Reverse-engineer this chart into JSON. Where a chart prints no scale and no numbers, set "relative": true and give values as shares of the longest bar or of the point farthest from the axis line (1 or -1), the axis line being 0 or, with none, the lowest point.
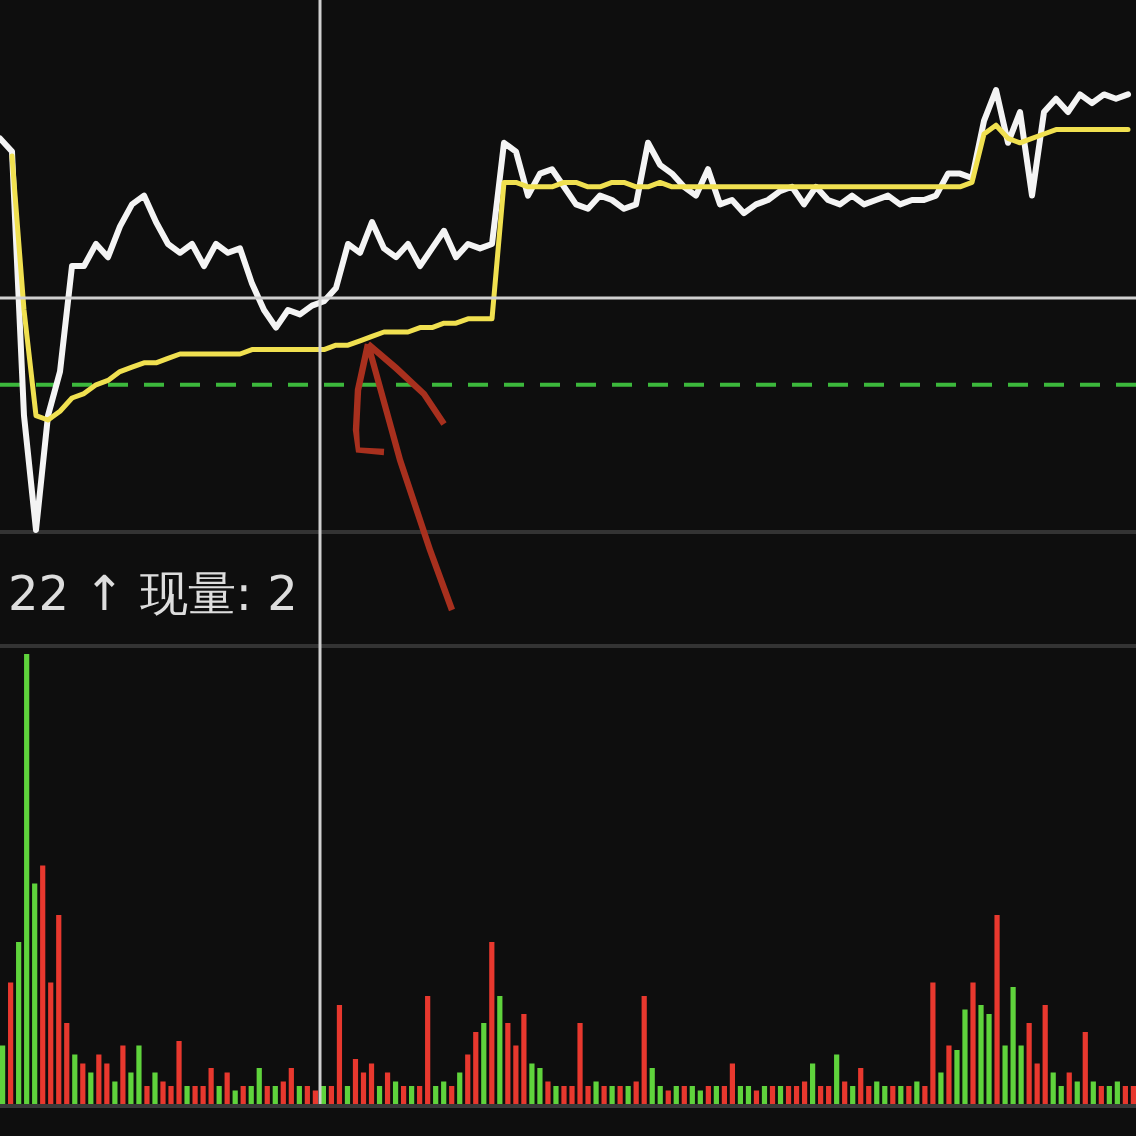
{
  "chart_data": [
    {
      "type": "line",
      "relative": true,
      "categories": [
        null,
        null,
        null,
        null,
        null,
        null,
        null,
        null,
        null,
        null,
        null,
        null,
        null,
        null,
        null,
        null,
        null,
        null,
        null,
        null,
        null,
        null,
        null,
        null,
        null,
        null,
        null,
        null,
        null,
        null,
        null,
        null,
        null,
        null,
        null,
        null,
        null,
        null,
        null,
        null,
        null,
        null,
        null,
        null,
        null,
        null,
        null,
        null,
        null,
        null,
        null,
        null,
        null,
        null,
        null,
        null,
        null,
        null,
        null,
        null,
        null,
        null,
        null,
        null,
        null,
        null,
        null,
        null,
        null,
        null,
        null,
        null,
        null,
        null,
        null,
        null,
        null,
        null,
        null,
        null,
        null,
        null,
        null,
        null,
        null,
        null,
        null,
        null,
        null,
        null,
        null,
        null,
        null,
        null,
        null
      ],
      "series": [
        {
          "color": "#f4f4f4",
          "values": [
            0.89,
            0.86,
            0.26,
            0,
            0.26,
            0.36,
            0.6,
            0.6,
            0.65,
            0.62,
            0.69,
            0.74,
            0.76,
            0.7,
            0.65,
            0.63,
            0.65,
            0.6,
            0.65,
            0.63,
            0.64,
            0.56,
            0.5,
            0.46,
            0.5,
            0.49,
            0.51,
            0.52,
            0.55,
            0.65,
            0.63,
            0.7,
            0.64,
            0.62,
            0.65,
            0.6,
            0.64,
            0.68,
            0.62,
            0.65,
            0.64,
            0.65,
            0.88,
            0.86,
            0.76,
            0.81,
            0.82,
            0.78,
            0.74,
            0.73,
            0.76,
            0.75,
            0.73,
            0.74,
            0.88,
            0.83,
            0.81,
            0.78,
            0.76,
            0.82,
            0.74,
            0.75,
            0.72,
            0.74,
            0.75,
            0.77,
            0.78,
            0.74,
            0.78,
            0.75,
            0.74,
            0.76,
            0.74,
            0.75,
            0.76,
            0.74,
            0.75,
            0.75,
            0.76,
            0.81,
            0.81,
            0.8,
            0.93,
            1,
            0.88,
            0.95,
            0.76,
            0.95,
            0.98,
            0.95,
            0.99,
            0.97,
            0.99,
            0.98,
            0.99
          ]
        },
        {
          "color": "#f0e050",
          "values": [
            null,
            0.85,
            0.5,
            0.26,
            0.25,
            0.27,
            0.3,
            0.31,
            0.33,
            0.34,
            0.36,
            0.37,
            0.38,
            0.38,
            0.39,
            0.4,
            0.4,
            0.4,
            0.4,
            0.4,
            0.4,
            0.41,
            0.41,
            0.41,
            0.41,
            0.41,
            0.41,
            0.41,
            0.42,
            0.42,
            0.43,
            0.44,
            0.45,
            0.45,
            0.45,
            0.46,
            0.46,
            0.47,
            0.47,
            0.48,
            0.48,
            0.48,
            0.79,
            0.79,
            0.78,
            0.78,
            0.78,
            0.79,
            0.79,
            0.78,
            0.78,
            0.79,
            0.79,
            0.78,
            0.78,
            0.79,
            0.78,
            0.78,
            0.78,
            0.78,
            0.78,
            0.78,
            0.78,
            0.78,
            0.78,
            0.78,
            0.78,
            0.78,
            0.78,
            0.78,
            0.78,
            0.78,
            0.78,
            0.78,
            0.78,
            0.78,
            0.78,
            0.78,
            0.78,
            0.78,
            0.78,
            0.79,
            0.9,
            0.92,
            0.89,
            0.88,
            0.89,
            0.9,
            0.91,
            0.91,
            0.91,
            0.91,
            0.91,
            0.91,
            0.91
          ]
        }
      ],
      "ref_lines": [
        {
          "axis": "y",
          "value": 0.33,
          "color": "#3cb83c",
          "line_style": "dashed"
        }
      ]
    },
    {
      "type": "bar",
      "relative": true,
      "annotations": [
        "22 ↑ 现量: 2"
      ],
      "categories": [
        null,
        null,
        null,
        null,
        null,
        null,
        null,
        null,
        null,
        null,
        null,
        null,
        null,
        null,
        null,
        null,
        null,
        null,
        null,
        null,
        null,
        null,
        null,
        null,
        null,
        null,
        null,
        null,
        null,
        null,
        null,
        null,
        null,
        null,
        null,
        null,
        null,
        null,
        null,
        null,
        null,
        null,
        null,
        null,
        null,
        null,
        null,
        null,
        null,
        null,
        null,
        null,
        null,
        null,
        null,
        null,
        null,
        null,
        null,
        null,
        null,
        null,
        null,
        null,
        null,
        null,
        null,
        null,
        null,
        null,
        null,
        null,
        null,
        null,
        null,
        null,
        null,
        null,
        null,
        null,
        null,
        null,
        null,
        null,
        null,
        null,
        null,
        null,
        null,
        null,
        null,
        null,
        null,
        null,
        null,
        null,
        null,
        null,
        null,
        null,
        null,
        null,
        null,
        null,
        null,
        null,
        null,
        null,
        null,
        null,
        null,
        null,
        null,
        null,
        null,
        null,
        null,
        null,
        null,
        null,
        null,
        null,
        null,
        null,
        null,
        null,
        null,
        null,
        null,
        null,
        null,
        null,
        null,
        null,
        null,
        null,
        null,
        null,
        null,
        null,
        null,
        null
      ],
      "values": [
        0.13,
        0.27,
        0.36,
        1,
        0.49,
        0.53,
        0.27,
        0.42,
        0.18,
        0.11,
        0.09,
        0.07,
        0.11,
        0.09,
        0.05,
        0.13,
        0.07,
        0.13,
        0.04,
        0.07,
        0.05,
        0.04,
        0.14,
        0.04,
        0.04,
        0.04,
        0.08,
        0.04,
        0.07,
        0.03,
        0.04,
        0.04,
        0.08,
        0.04,
        0.04,
        0.05,
        0.08,
        0.04,
        0.04,
        0.03,
        0.04,
        0.04,
        0.22,
        0.04,
        0.1,
        0.07,
        0.09,
        0.04,
        0.07,
        0.05,
        0.04,
        0.04,
        0.04,
        0.24,
        0.04,
        0.05,
        0.04,
        0.07,
        0.11,
        0.16,
        0.18,
        0.36,
        0.24,
        0.18,
        0.13,
        0.2,
        0.09,
        0.08,
        0.05,
        0.04,
        0.04,
        0.04,
        0.18,
        0.04,
        0.05,
        0.04,
        0.04,
        0.04,
        0.04,
        0.05,
        0.24,
        0.08,
        0.04,
        0.03,
        0.04,
        0.04,
        0.04,
        0.03,
        0.04,
        0.04,
        0.04,
        0.09,
        0.04,
        0.04,
        0.03,
        0.04,
        0.04,
        0.04,
        0.04,
        0.04,
        0.05,
        0.09,
        0.04,
        0.04,
        0.11,
        0.05,
        0.04,
        0.08,
        0.04,
        0.05,
        0.04,
        0.04,
        0.04,
        0.04,
        0.05,
        0.04,
        0.27,
        0.07,
        0.13,
        0.12,
        0.21,
        0.27,
        0.22,
        0.2,
        0.42,
        0.13,
        0.26,
        0.13,
        0.18,
        0.09,
        0.22,
        0.07,
        0.04,
        0.07,
        0.05,
        0.16,
        0.05,
        0.04,
        0.04,
        0.05,
        0.04,
        0.04
      ],
      "colors": [
        "#5fd33c",
        "#e8382e",
        "#5fd33c",
        "#5fd33c",
        "#5fd33c",
        "#e8382e",
        "#e8382e",
        "#e8382e",
        "#e8382e",
        "#5fd33c",
        "#e8382e",
        "#5fd33c",
        "#e8382e",
        "#e8382e",
        "#5fd33c",
        "#e8382e",
        "#5fd33c",
        "#5fd33c",
        "#e8382e",
        "#5fd33c",
        "#e8382e",
        "#e8382e",
        "#e8382e",
        "#5fd33c",
        "#e8382e",
        "#e8382e",
        "#e8382e",
        "#5fd33c",
        "#e8382e",
        "#5fd33c",
        "#e8382e",
        "#5fd33c",
        "#5fd33c",
        "#e8382e",
        "#5fd33c",
        "#e8382e",
        "#e8382e",
        "#5fd33c",
        "#e8382e",
        "#e8382e",
        "#5fd33c",
        "#e8382e",
        "#e8382e",
        "#5fd33c",
        "#e8382e",
        "#e8382e",
        "#e8382e",
        "#5fd33c",
        "#e8382e",
        "#5fd33c",
        "#e8382e",
        "#5fd33c",
        "#e8382e",
        "#e8382e",
        "#5fd33c",
        "#5fd33c",
        "#e8382e",
        "#5fd33c",
        "#e8382e",
        "#e8382e",
        "#5fd33c",
        "#e8382e",
        "#5fd33c",
        "#e8382e",
        "#e8382e",
        "#e8382e",
        "#5fd33c",
        "#5fd33c",
        "#e8382e",
        "#5fd33c",
        "#e8382e",
        "#e8382e",
        "#e8382e",
        "#e8382e",
        "#5fd33c",
        "#e8382e",
        "#5fd33c",
        "#e8382e",
        "#5fd33c",
        "#e8382e",
        "#e8382e",
        "#5fd33c",
        "#5fd33c",
        "#e8382e",
        "#5fd33c",
        "#e8382e",
        "#5fd33c",
        "#5fd33c",
        "#e8382e",
        "#5fd33c",
        "#e8382e",
        "#e8382e",
        "#5fd33c",
        "#5fd33c",
        "#e8382e",
        "#5fd33c",
        "#e8382e",
        "#5fd33c",
        "#e8382e",
        "#e8382e",
        "#e8382e",
        "#5fd33c",
        "#e8382e",
        "#e8382e",
        "#5fd33c",
        "#e8382e",
        "#5fd33c",
        "#e8382e",
        "#e8382e",
        "#5fd33c",
        "#5fd33c",
        "#e8382e",
        "#5fd33c",
        "#e8382e",
        "#5fd33c",
        "#e8382e",
        "#e8382e",
        "#5fd33c",
        "#e8382e",
        "#5fd33c",
        "#5fd33c",
        "#e8382e",
        "#5fd33c",
        "#5fd33c",
        "#e8382e",
        "#5fd33c",
        "#5fd33c",
        "#5fd33c",
        "#e8382e",
        "#e8382e",
        "#e8382e",
        "#5fd33c",
        "#5fd33c",
        "#e8382e",
        "#5fd33c",
        "#e8382e",
        "#5fd33c",
        "#e8382e",
        "#5fd33c",
        "#5fd33c",
        "#e8382e",
        "#e8382e"
      ]
    }
  ]
}
